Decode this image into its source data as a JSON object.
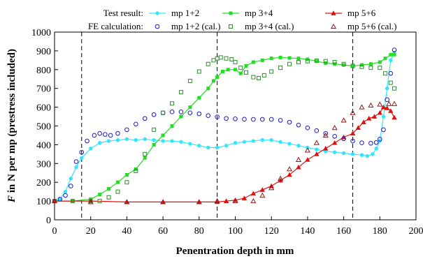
{
  "chart_data": {
    "type": "line",
    "xlabel": "Penentration depth in mm",
    "ylabel": "F in N per mp (prestress included)",
    "ylabel_symbol": "F",
    "ylabel_rest": " in N per mp (prestress included)",
    "xlim": [
      0,
      200
    ],
    "ylim": [
      0,
      1000
    ],
    "x_ticks": [
      0,
      20,
      40,
      60,
      80,
      100,
      120,
      140,
      160,
      180,
      200
    ],
    "y_ticks": [
      0,
      100,
      200,
      300,
      400,
      500,
      600,
      700,
      800,
      900,
      1000
    ],
    "grid": false,
    "vertical_lines_x": [
      15,
      90,
      165
    ],
    "legend": {
      "placement": "top",
      "row_labels": [
        "Test result:",
        "FE calculation:"
      ]
    },
    "colors": {
      "mp12": "#33e6ff",
      "mp12_cal": "#1a1acc",
      "mp34": "#22dd22",
      "mp34_cal": "#2b8f2b",
      "mp56": "#dd1111",
      "mp56_cal": "#8b1a1a"
    },
    "series": [
      {
        "name": "mp 1+2",
        "group": "test",
        "marker": "circle-filled",
        "color_key": "mp12",
        "x": [
          0,
          3,
          6,
          9,
          12,
          15,
          20,
          25,
          30,
          35,
          40,
          45,
          50,
          55,
          60,
          65,
          70,
          75,
          80,
          85,
          90,
          95,
          100,
          105,
          110,
          115,
          120,
          125,
          130,
          135,
          140,
          145,
          150,
          155,
          160,
          165,
          170,
          173,
          176,
          178,
          180,
          182,
          184,
          186,
          188
        ],
        "y": [
          100,
          110,
          150,
          220,
          280,
          330,
          380,
          410,
          420,
          425,
          430,
          425,
          430,
          425,
          420,
          420,
          415,
          405,
          395,
          385,
          385,
          395,
          410,
          415,
          420,
          425,
          425,
          415,
          405,
          395,
          385,
          375,
          365,
          360,
          355,
          350,
          345,
          340,
          350,
          380,
          420,
          550,
          700,
          850,
          890
        ]
      },
      {
        "name": "mp 3+4",
        "group": "test",
        "marker": "square-filled",
        "color_key": "mp34",
        "x": [
          0,
          10,
          20,
          25,
          30,
          35,
          40,
          45,
          50,
          55,
          60,
          65,
          70,
          75,
          80,
          85,
          88,
          90,
          93,
          96,
          100,
          103,
          106,
          110,
          115,
          120,
          125,
          130,
          135,
          140,
          145,
          150,
          155,
          160,
          165,
          170,
          175,
          180,
          183,
          186,
          188
        ],
        "y": [
          100,
          100,
          110,
          135,
          165,
          200,
          240,
          270,
          330,
          400,
          450,
          500,
          550,
          600,
          650,
          700,
          740,
          760,
          790,
          800,
          800,
          780,
          820,
          840,
          850,
          860,
          865,
          862,
          860,
          855,
          845,
          835,
          830,
          825,
          820,
          825,
          830,
          840,
          860,
          880,
          880
        ]
      },
      {
        "name": "mp 5+6",
        "group": "test",
        "marker": "triangle-filled",
        "color_key": "mp56",
        "x": [
          0,
          20,
          40,
          60,
          80,
          90,
          95,
          100,
          105,
          110,
          115,
          120,
          125,
          130,
          135,
          140,
          145,
          150,
          155,
          160,
          165,
          168,
          171,
          174,
          177,
          180,
          182,
          184,
          186,
          188
        ],
        "y": [
          100,
          100,
          95,
          95,
          95,
          95,
          100,
          105,
          115,
          140,
          160,
          180,
          210,
          240,
          280,
          320,
          350,
          380,
          410,
          440,
          460,
          490,
          520,
          540,
          550,
          570,
          600,
          595,
          580,
          545
        ]
      },
      {
        "name": "mp 1+2 (cal.)",
        "group": "fe",
        "marker": "circle-open",
        "color_key": "mp12_cal",
        "x": [
          0,
          3,
          6,
          9,
          12,
          15,
          18,
          22,
          25,
          28,
          31,
          35,
          40,
          45,
          50,
          55,
          60,
          65,
          70,
          75,
          80,
          85,
          90,
          95,
          100,
          105,
          110,
          115,
          120,
          125,
          130,
          135,
          140,
          145,
          150,
          155,
          160,
          165,
          170,
          175,
          178,
          180,
          182,
          184,
          186,
          188
        ],
        "y": [
          100,
          110,
          130,
          180,
          310,
          360,
          420,
          450,
          460,
          455,
          450,
          460,
          480,
          510,
          540,
          560,
          570,
          575,
          575,
          570,
          565,
          555,
          548,
          540,
          538,
          536,
          535,
          535,
          535,
          530,
          520,
          505,
          490,
          475,
          460,
          445,
          432,
          420,
          410,
          408,
          412,
          430,
          480,
          640,
          780,
          905
        ]
      },
      {
        "name": "mp 3+4 (cal.)",
        "group": "fe",
        "marker": "square-open",
        "color_key": "mp34_cal",
        "x": [
          0,
          10,
          20,
          25,
          30,
          35,
          40,
          45,
          50,
          55,
          60,
          65,
          70,
          75,
          80,
          85,
          88,
          90,
          92,
          95,
          98,
          100,
          103,
          106,
          110,
          113,
          116,
          120,
          125,
          130,
          135,
          140,
          145,
          150,
          155,
          160,
          165,
          170,
          175,
          180,
          183,
          186,
          188
        ],
        "y": [
          100,
          100,
          100,
          100,
          120,
          150,
          200,
          260,
          350,
          480,
          570,
          620,
          680,
          740,
          790,
          830,
          850,
          860,
          865,
          860,
          855,
          840,
          810,
          785,
          760,
          755,
          770,
          790,
          810,
          830,
          840,
          845,
          848,
          845,
          840,
          830,
          820,
          815,
          810,
          810,
          780,
          730,
          700
        ]
      },
      {
        "name": "mp 5+6  (cal.)",
        "group": "fe",
        "marker": "triangle-open",
        "color_key": "mp56_cal",
        "x": [
          0,
          20,
          40,
          60,
          80,
          90,
          100,
          110,
          115,
          120,
          125,
          130,
          135,
          140,
          145,
          150,
          155,
          160,
          165,
          170,
          175,
          180,
          185,
          188
        ],
        "y": [
          100,
          95,
          95,
          95,
          95,
          100,
          100,
          100,
          130,
          170,
          220,
          270,
          320,
          370,
          410,
          450,
          490,
          530,
          570,
          600,
          610,
          615,
          618,
          618
        ]
      }
    ]
  }
}
